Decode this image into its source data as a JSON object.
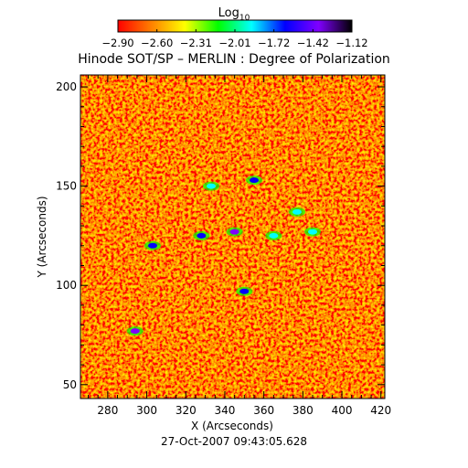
{
  "colorbar": {
    "title_base": "Log",
    "title_sub": "10",
    "ticks": [
      "−2.90",
      "−2.60",
      "−2.31",
      "−2.01",
      "−1.72",
      "−1.42",
      "−1.12"
    ],
    "range": [
      -2.9,
      -1.12
    ],
    "colormap": [
      "#ff0000",
      "#ff8000",
      "#ffff00",
      "#00ff00",
      "#00ffff",
      "#0000ff",
      "#8000ff",
      "#000000"
    ]
  },
  "footer": {
    "timestamp": "27‐Oct‐2007 09:43:05.628"
  },
  "chart_data": {
    "type": "heatmap",
    "title": "Hinode SOT/SP – MERLIN : Degree of Polarization",
    "xlabel": "X (Arcseconds)",
    "ylabel": "Y (Arcseconds)",
    "xlim": [
      266,
      422
    ],
    "ylim": [
      43,
      206
    ],
    "xticks": [
      280,
      300,
      320,
      340,
      360,
      380,
      400,
      420
    ],
    "yticks": [
      50,
      100,
      150,
      200
    ],
    "value_unit": "Log10 degree of polarization",
    "value_range": [
      -2.9,
      -1.12
    ],
    "typical_value": -2.85,
    "enhanced_features": [
      {
        "x": 303,
        "y": 120,
        "value": -1.6
      },
      {
        "x": 328,
        "y": 125,
        "value": -1.7
      },
      {
        "x": 345,
        "y": 127,
        "value": -1.5
      },
      {
        "x": 365,
        "y": 125,
        "value": -1.8
      },
      {
        "x": 385,
        "y": 127,
        "value": -1.8
      },
      {
        "x": 294,
        "y": 77,
        "value": -1.4
      },
      {
        "x": 355,
        "y": 153,
        "value": -1.6
      },
      {
        "x": 350,
        "y": 97,
        "value": -1.6
      },
      {
        "x": 333,
        "y": 150,
        "value": -1.8
      },
      {
        "x": 377,
        "y": 137,
        "value": -2.0
      }
    ]
  }
}
